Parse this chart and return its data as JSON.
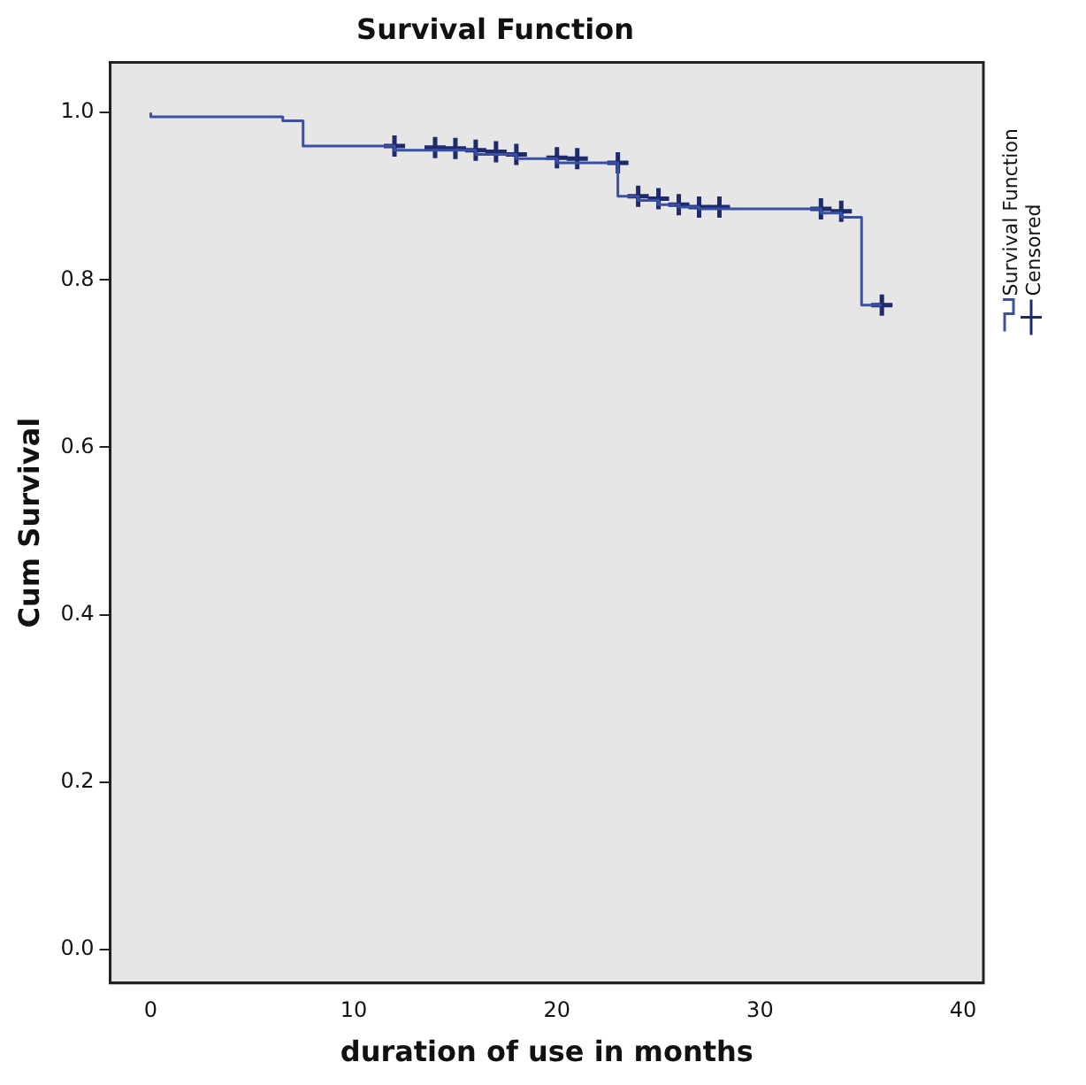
{
  "chart_data": {
    "type": "step",
    "title": "Survival Function",
    "xlabel": "duration of use in months",
    "ylabel": "Cum Survival",
    "xlim": [
      -2,
      41
    ],
    "xticks": [
      0,
      10,
      20,
      30,
      40
    ],
    "ylim": [
      -0.04,
      1.06
    ],
    "yticks": [
      {
        "value": 0,
        "label": "0.0"
      },
      0.2,
      0.4,
      0.6,
      0.8,
      {
        "value": 1,
        "label": "1.0"
      }
    ],
    "grid": false,
    "legend": "right",
    "series": [
      {
        "name": "Survival Function",
        "color": "#3a4fa6",
        "marker": "none",
        "x": [
          0,
          6.5,
          7.5,
          12,
          16,
          18,
          20,
          23,
          24,
          25,
          26,
          27,
          33,
          34,
          35,
          36
        ],
        "values": [
          1,
          0.995,
          0.99,
          0.96,
          0.955,
          0.95,
          0.945,
          0.94,
          0.9,
          0.895,
          0.89,
          0.887,
          0.885,
          0.88,
          0.875,
          0.77
        ]
      },
      {
        "name": "Censored",
        "type": "scatter",
        "color": "#1f2a6b",
        "marker": "cross",
        "x": [
          12,
          14,
          15,
          16,
          17,
          18,
          20,
          21,
          23,
          24,
          25,
          26,
          27,
          28,
          33,
          34,
          36
        ],
        "values": [
          0.96,
          0.958,
          0.957,
          0.955,
          0.953,
          0.95,
          0.946,
          0.945,
          0.94,
          0.9,
          0.897,
          0.89,
          0.887,
          0.887,
          0.885,
          0.882,
          0.77
        ]
      }
    ]
  }
}
